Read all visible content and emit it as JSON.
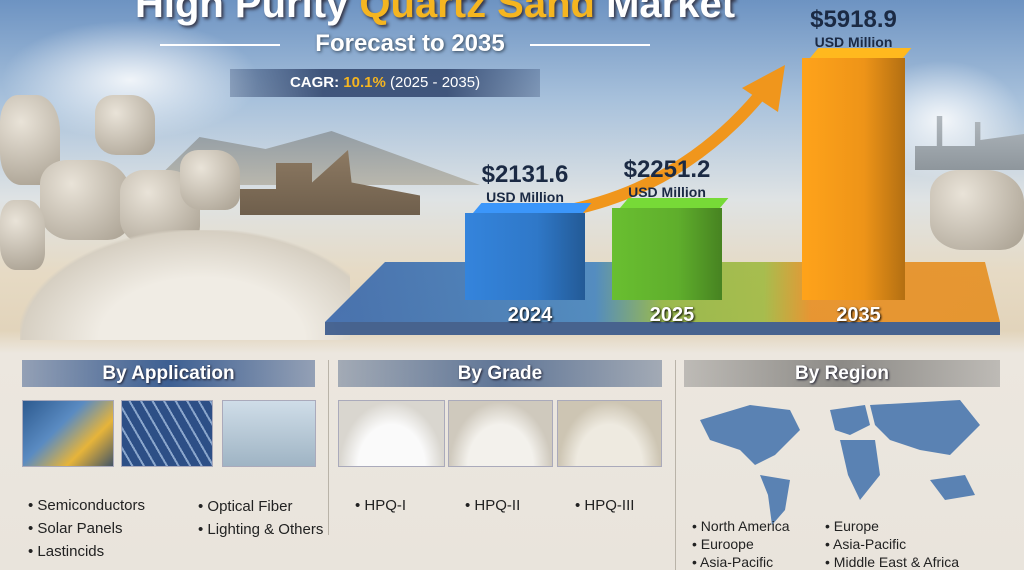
{
  "header": {
    "title_part1": "High Purity ",
    "title_highlight": "Quartz Sand",
    "title_part2": " Market",
    "subtitle": "Forecast to 2035",
    "cagr_label": "CAGR:",
    "cagr_value": "10.1%",
    "cagr_period": "(2025 - 2035)"
  },
  "chart_data": {
    "type": "bar",
    "categories": [
      "2024",
      "2025",
      "2035"
    ],
    "values": [
      2131.6,
      2251.2,
      5918.9
    ],
    "data_labels": [
      "$2131.6",
      "$2251.2",
      "$5918.9"
    ],
    "unit": "USD Million",
    "colors": [
      "#2f78c8",
      "#5fae2c",
      "#ee9418"
    ],
    "style": "3d",
    "trend_arrow": true
  },
  "panels": {
    "application": {
      "title": "By Application",
      "items": [
        "Semiconductors",
        "Solar Panels",
        "Lastincids",
        "Optical Fiber",
        "Lighting & Others"
      ]
    },
    "grade": {
      "title": "By Grade",
      "items": [
        "HPQ-I",
        "HPQ-II",
        "HPQ-III"
      ]
    },
    "region": {
      "title": "By Region",
      "items": [
        "North America",
        "Euroope",
        "Asia-Pacific",
        "Europe",
        "Asia-Pacific",
        "Middle East & Africa"
      ]
    }
  }
}
